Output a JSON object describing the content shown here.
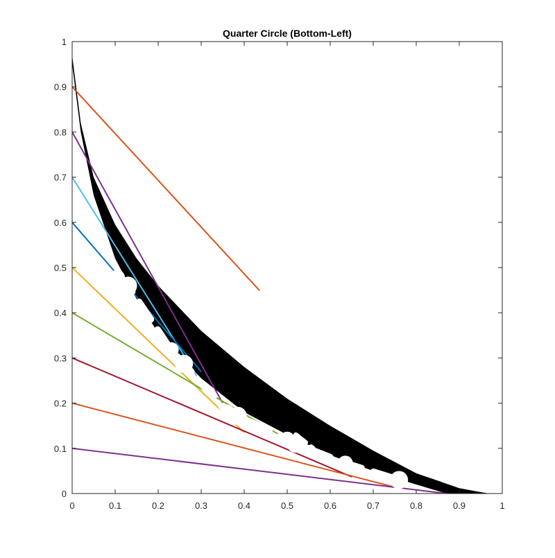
{
  "chart_data": {
    "type": "line",
    "title": "Quarter Circle (Bottom-Left)",
    "xlabel": "",
    "ylabel": "",
    "xlim": [
      0,
      1
    ],
    "ylim": [
      0,
      1
    ],
    "xticks": [
      "0",
      "0.1",
      "0.2",
      "0.3",
      "0.4",
      "0.5",
      "0.6",
      "0.7",
      "0.8",
      "0.9",
      "1"
    ],
    "yticks": [
      "0",
      "0.1",
      "0.2",
      "0.3",
      "0.4",
      "0.5",
      "0.6",
      "0.7",
      "0.8",
      "0.9",
      "1"
    ],
    "grid": false,
    "legend": "none",
    "filled_region": {
      "color": "#000000",
      "upper": [
        [
          0.0,
          0.97
        ],
        [
          0.02,
          0.82
        ],
        [
          0.05,
          0.7
        ],
        [
          0.1,
          0.595
        ],
        [
          0.15,
          0.52
        ],
        [
          0.2,
          0.46
        ],
        [
          0.3,
          0.36
        ],
        [
          0.4,
          0.28
        ],
        [
          0.5,
          0.21
        ],
        [
          0.6,
          0.15
        ],
        [
          0.7,
          0.095
        ],
        [
          0.8,
          0.045
        ],
        [
          0.9,
          0.012
        ],
        [
          0.95,
          0.003
        ],
        [
          0.97,
          0.0
        ]
      ],
      "lower": [
        [
          0.87,
          0.0
        ],
        [
          0.8,
          0.02
        ],
        [
          0.7,
          0.05
        ],
        [
          0.6,
          0.085
        ],
        [
          0.5,
          0.13
        ],
        [
          0.4,
          0.18
        ],
        [
          0.3,
          0.255
        ],
        [
          0.2,
          0.355
        ],
        [
          0.15,
          0.43
        ],
        [
          0.1,
          0.52
        ],
        [
          0.05,
          0.66
        ],
        [
          0.02,
          0.8
        ],
        [
          0.0,
          0.95
        ]
      ]
    },
    "series": [
      {
        "values": [
          [
            0,
            0.9
          ],
          [
            0.436,
            0.449
          ]
        ],
        "color": "#D95319"
      },
      {
        "values": [
          [
            0,
            0.8
          ],
          [
            0.35,
            0.2
          ]
        ],
        "color": "#7E2F8E"
      },
      {
        "values": [
          [
            0,
            0.7
          ],
          [
            0.29,
            0.26
          ]
        ],
        "color": "#4DBEEE"
      },
      {
        "values": [
          [
            0,
            0.6
          ],
          [
            0.3,
            0.27
          ]
        ],
        "color": "#0072BD"
      },
      {
        "values": [
          [
            0,
            0.5
          ],
          [
            0.4,
            0.135
          ]
        ],
        "color": "#EDB120"
      },
      {
        "values": [
          [
            0,
            0.4
          ],
          [
            0.5,
            0.12
          ]
        ],
        "color": "#77AC30"
      },
      {
        "values": [
          [
            0,
            0.3
          ],
          [
            0.65,
            0.037
          ]
        ],
        "color": "#A2142F"
      },
      {
        "values": [
          [
            0,
            0.2
          ],
          [
            0.75,
            0.014
          ]
        ],
        "color": "#D95319"
      },
      {
        "values": [
          [
            0,
            0.1
          ],
          [
            0.87,
            0.0
          ]
        ],
        "color": "#7E2F8E"
      }
    ],
    "white_dots": [
      [
        0.105,
        0.478
      ],
      [
        0.13,
        0.46
      ],
      [
        0.23,
        0.318
      ],
      [
        0.26,
        0.287
      ],
      [
        0.36,
        0.18
      ],
      [
        0.385,
        0.172
      ],
      [
        0.5,
        0.12
      ],
      [
        0.52,
        0.11
      ],
      [
        0.635,
        0.067
      ],
      [
        0.76,
        0.03
      ]
    ],
    "white_gaps": [
      [
        [
          0.07,
          0.455
        ],
        [
          0.15,
          0.415
        ]
      ],
      [
        [
          0.06,
          0.39
        ],
        [
          0.15,
          0.335
        ]
      ],
      [
        [
          0.005,
          0.31
        ],
        [
          0.06,
          0.285
        ]
      ],
      [
        [
          0.0,
          0.25
        ],
        [
          0.03,
          0.235
        ]
      ],
      [
        [
          0.52,
          0.13
        ],
        [
          0.56,
          0.1
        ]
      ]
    ]
  }
}
